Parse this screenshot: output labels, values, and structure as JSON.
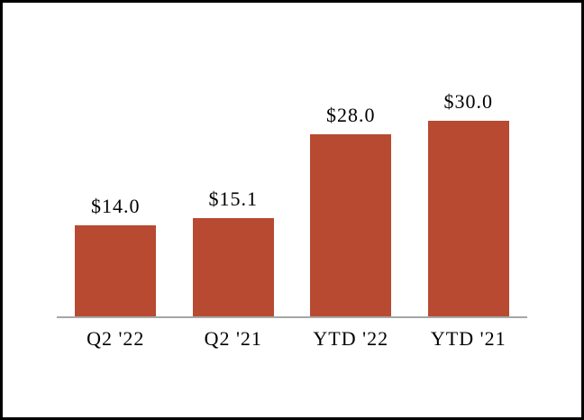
{
  "chart_data": {
    "type": "bar",
    "categories": [
      "Q2 '22",
      "Q2 '21",
      "YTD '22",
      "YTD '21"
    ],
    "values": [
      14.0,
      15.1,
      28.0,
      30.0
    ],
    "data_labels": [
      "$14.0",
      "$15.1",
      "$28.0",
      "$30.0"
    ],
    "title": "",
    "xlabel": "",
    "ylabel": "",
    "ylim": [
      0,
      36
    ],
    "grid": "off",
    "legend": "none",
    "bar_color": "#B84A32",
    "axis_line_color": "#A6A6A6",
    "background_color": "#FFFFFF",
    "border_color": "#000000",
    "label_color": "#000000"
  }
}
